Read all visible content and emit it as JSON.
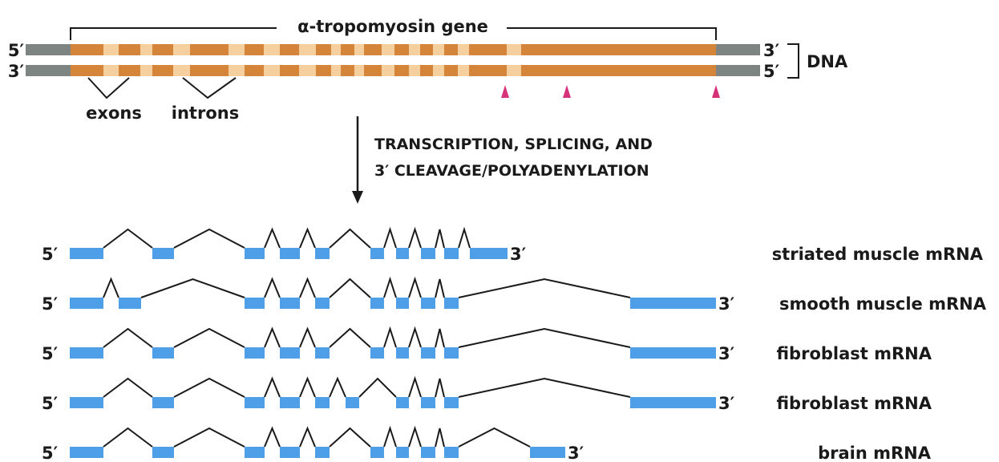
{
  "gene_title": "α-tropomyosin gene",
  "dna": {
    "label": "DNA",
    "top_left": "5′",
    "bottom_left": "3′",
    "top_right": "3′",
    "bottom_right": "5′",
    "exons_label": "exons",
    "introns_label": "introns"
  },
  "process": {
    "line1": "TRANSCRIPTION, SPLICING, AND",
    "line2": "3′ CLEAVAGE/POLYADENYLATION"
  },
  "mrnas": [
    {
      "five": "5′",
      "three": "3′",
      "label": "striated muscle mRNA"
    },
    {
      "five": "5′",
      "three": "3′",
      "label": "smooth muscle mRNA"
    },
    {
      "five": "5′",
      "three": "3′",
      "label": "fibroblast mRNA"
    },
    {
      "five": "5′",
      "three": "3′",
      "label": "fibroblast mRNA"
    },
    {
      "five": "5′",
      "three": "3′",
      "label": "brain mRNA"
    }
  ],
  "colors": {
    "exon_dna": "#d4853a",
    "intron_dna": "#f6cf9e",
    "flank_dna": "#7e8482",
    "mrna_exon": "#4f9ee8",
    "polya_site": "#d6337a"
  }
}
